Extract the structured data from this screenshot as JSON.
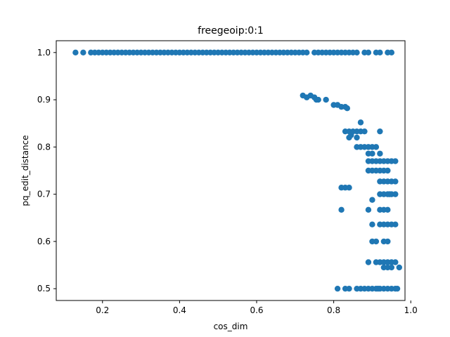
{
  "chart_data": {
    "type": "scatter",
    "title": "freegeoip:0:1",
    "xlabel": "cos_dim",
    "ylabel": "pq_edit_distance",
    "xlim": [
      0.08,
      0.985
    ],
    "ylim": [
      0.475,
      1.025
    ],
    "xticks": [
      0.2,
      0.4,
      0.6,
      0.8,
      1.0
    ],
    "xtick_labels": [
      "0.2",
      "0.4",
      "0.6",
      "0.8",
      "1.0"
    ],
    "yticks": [
      0.5,
      0.6,
      0.7,
      0.8,
      0.9,
      1.0
    ],
    "ytick_labels": [
      "0.5",
      "0.6",
      "0.7",
      "0.8",
      "0.9",
      "1.0"
    ],
    "grid": false,
    "legend": "none",
    "color": "#1f77b4",
    "series": [
      {
        "points": [
          [
            0.13,
            1.0
          ],
          [
            0.15,
            1.0
          ],
          [
            0.17,
            1.0
          ],
          [
            0.18,
            1.0
          ],
          [
            0.19,
            1.0
          ],
          [
            0.2,
            1.0
          ],
          [
            0.21,
            1.0
          ],
          [
            0.22,
            1.0
          ],
          [
            0.23,
            1.0
          ],
          [
            0.24,
            1.0
          ],
          [
            0.25,
            1.0
          ],
          [
            0.26,
            1.0
          ],
          [
            0.27,
            1.0
          ],
          [
            0.28,
            1.0
          ],
          [
            0.29,
            1.0
          ],
          [
            0.3,
            1.0
          ],
          [
            0.31,
            1.0
          ],
          [
            0.32,
            1.0
          ],
          [
            0.33,
            1.0
          ],
          [
            0.34,
            1.0
          ],
          [
            0.35,
            1.0
          ],
          [
            0.36,
            1.0
          ],
          [
            0.37,
            1.0
          ],
          [
            0.38,
            1.0
          ],
          [
            0.39,
            1.0
          ],
          [
            0.4,
            1.0
          ],
          [
            0.41,
            1.0
          ],
          [
            0.42,
            1.0
          ],
          [
            0.43,
            1.0
          ],
          [
            0.44,
            1.0
          ],
          [
            0.45,
            1.0
          ],
          [
            0.46,
            1.0
          ],
          [
            0.47,
            1.0
          ],
          [
            0.48,
            1.0
          ],
          [
            0.49,
            1.0
          ],
          [
            0.5,
            1.0
          ],
          [
            0.51,
            1.0
          ],
          [
            0.52,
            1.0
          ],
          [
            0.53,
            1.0
          ],
          [
            0.54,
            1.0
          ],
          [
            0.55,
            1.0
          ],
          [
            0.56,
            1.0
          ],
          [
            0.57,
            1.0
          ],
          [
            0.58,
            1.0
          ],
          [
            0.59,
            1.0
          ],
          [
            0.6,
            1.0
          ],
          [
            0.61,
            1.0
          ],
          [
            0.62,
            1.0
          ],
          [
            0.63,
            1.0
          ],
          [
            0.64,
            1.0
          ],
          [
            0.65,
            1.0
          ],
          [
            0.66,
            1.0
          ],
          [
            0.67,
            1.0
          ],
          [
            0.68,
            1.0
          ],
          [
            0.69,
            1.0
          ],
          [
            0.7,
            1.0
          ],
          [
            0.71,
            1.0
          ],
          [
            0.72,
            1.0
          ],
          [
            0.73,
            1.0
          ],
          [
            0.75,
            1.0
          ],
          [
            0.76,
            1.0
          ],
          [
            0.77,
            1.0
          ],
          [
            0.78,
            1.0
          ],
          [
            0.79,
            1.0
          ],
          [
            0.8,
            1.0
          ],
          [
            0.81,
            1.0
          ],
          [
            0.82,
            1.0
          ],
          [
            0.83,
            1.0
          ],
          [
            0.84,
            1.0
          ],
          [
            0.85,
            1.0
          ],
          [
            0.86,
            1.0
          ],
          [
            0.88,
            1.0
          ],
          [
            0.89,
            1.0
          ],
          [
            0.91,
            1.0
          ],
          [
            0.92,
            1.0
          ],
          [
            0.94,
            1.0
          ],
          [
            0.95,
            1.0
          ],
          [
            0.72,
            0.909
          ],
          [
            0.73,
            0.905
          ],
          [
            0.74,
            0.909
          ],
          [
            0.75,
            0.905
          ],
          [
            0.755,
            0.9
          ],
          [
            0.76,
            0.9
          ],
          [
            0.78,
            0.9
          ],
          [
            0.8,
            0.889
          ],
          [
            0.81,
            0.889
          ],
          [
            0.82,
            0.885
          ],
          [
            0.83,
            0.885
          ],
          [
            0.835,
            0.882
          ],
          [
            0.83,
            0.833
          ],
          [
            0.84,
            0.833
          ],
          [
            0.845,
            0.825
          ],
          [
            0.85,
            0.833
          ],
          [
            0.86,
            0.833
          ],
          [
            0.87,
            0.833
          ],
          [
            0.88,
            0.833
          ],
          [
            0.84,
            0.82
          ],
          [
            0.86,
            0.82
          ],
          [
            0.87,
            0.852
          ],
          [
            0.86,
            0.8
          ],
          [
            0.87,
            0.8
          ],
          [
            0.88,
            0.8
          ],
          [
            0.89,
            0.8
          ],
          [
            0.9,
            0.8
          ],
          [
            0.91,
            0.8
          ],
          [
            0.89,
            0.786
          ],
          [
            0.9,
            0.786
          ],
          [
            0.92,
            0.786
          ],
          [
            0.92,
            0.833
          ],
          [
            0.89,
            0.77
          ],
          [
            0.9,
            0.77
          ],
          [
            0.91,
            0.77
          ],
          [
            0.92,
            0.77
          ],
          [
            0.93,
            0.77
          ],
          [
            0.94,
            0.77
          ],
          [
            0.95,
            0.77
          ],
          [
            0.96,
            0.77
          ],
          [
            0.89,
            0.75
          ],
          [
            0.9,
            0.75
          ],
          [
            0.91,
            0.75
          ],
          [
            0.92,
            0.75
          ],
          [
            0.93,
            0.75
          ],
          [
            0.94,
            0.75
          ],
          [
            0.92,
            0.727
          ],
          [
            0.93,
            0.727
          ],
          [
            0.94,
            0.727
          ],
          [
            0.95,
            0.727
          ],
          [
            0.96,
            0.727
          ],
          [
            0.92,
            0.7
          ],
          [
            0.93,
            0.7
          ],
          [
            0.94,
            0.7
          ],
          [
            0.945,
            0.7
          ],
          [
            0.95,
            0.7
          ],
          [
            0.96,
            0.7
          ],
          [
            0.82,
            0.714
          ],
          [
            0.83,
            0.714
          ],
          [
            0.84,
            0.714
          ],
          [
            0.9,
            0.688
          ],
          [
            0.92,
            0.667
          ],
          [
            0.93,
            0.667
          ],
          [
            0.94,
            0.667
          ],
          [
            0.89,
            0.667
          ],
          [
            0.82,
            0.667
          ],
          [
            0.9,
            0.636
          ],
          [
            0.92,
            0.636
          ],
          [
            0.93,
            0.636
          ],
          [
            0.94,
            0.636
          ],
          [
            0.95,
            0.636
          ],
          [
            0.96,
            0.636
          ],
          [
            0.9,
            0.6
          ],
          [
            0.91,
            0.6
          ],
          [
            0.93,
            0.6
          ],
          [
            0.94,
            0.6
          ],
          [
            0.89,
            0.556
          ],
          [
            0.91,
            0.556
          ],
          [
            0.92,
            0.556
          ],
          [
            0.93,
            0.556
          ],
          [
            0.94,
            0.556
          ],
          [
            0.95,
            0.556
          ],
          [
            0.96,
            0.556
          ],
          [
            0.93,
            0.545
          ],
          [
            0.94,
            0.545
          ],
          [
            0.95,
            0.545
          ],
          [
            0.97,
            0.545
          ],
          [
            0.81,
            0.5
          ],
          [
            0.83,
            0.5
          ],
          [
            0.84,
            0.5
          ],
          [
            0.86,
            0.5
          ],
          [
            0.87,
            0.5
          ],
          [
            0.88,
            0.5
          ],
          [
            0.89,
            0.5
          ],
          [
            0.9,
            0.5
          ],
          [
            0.91,
            0.5
          ],
          [
            0.915,
            0.5
          ],
          [
            0.92,
            0.5
          ],
          [
            0.93,
            0.5
          ],
          [
            0.94,
            0.5
          ],
          [
            0.95,
            0.5
          ],
          [
            0.96,
            0.5
          ],
          [
            0.965,
            0.5
          ]
        ]
      }
    ]
  }
}
